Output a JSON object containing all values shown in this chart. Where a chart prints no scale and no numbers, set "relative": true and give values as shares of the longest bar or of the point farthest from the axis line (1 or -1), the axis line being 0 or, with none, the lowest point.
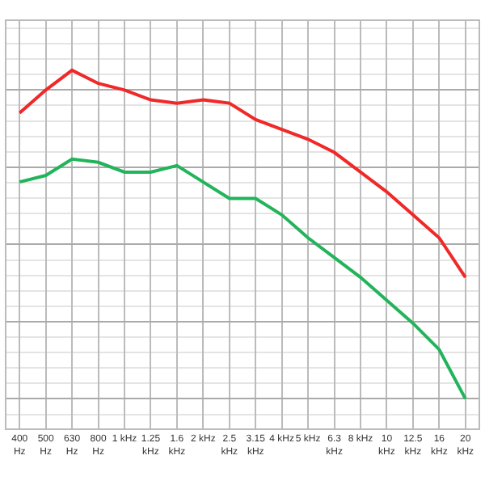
{
  "chart_data": {
    "type": "line",
    "relative": true,
    "grid": true,
    "marker": "none",
    "line_style": "solid",
    "categories": [
      "400\nHz",
      "500\nHz",
      "630\nHz",
      "800\nHz",
      "1 kHz",
      "1.25\nkHz",
      "1.6\nkHz",
      "2 kHz",
      "2.5\nkHz",
      "3.15\nkHz",
      "4 kHz",
      "5 kHz",
      "6.3\nkHz",
      "8 kHz",
      "10\nkHz",
      "12.5\nkHz",
      "16\nkHz",
      "20\nkHz"
    ],
    "series": [
      {
        "color": "#f02828",
        "values": [
          0.87,
          0.94,
          1.0,
          0.96,
          0.94,
          0.91,
          0.9,
          0.91,
          0.9,
          0.85,
          0.82,
          0.79,
          0.75,
          0.69,
          0.63,
          0.56,
          0.49,
          0.37
        ]
      },
      {
        "color": "#22b45a",
        "values": [
          0.66,
          0.68,
          0.73,
          0.72,
          0.69,
          0.69,
          0.71,
          0.66,
          0.61,
          0.61,
          0.56,
          0.49,
          0.43,
          0.37,
          0.3,
          0.23,
          0.15,
          0.0
        ]
      }
    ]
  }
}
